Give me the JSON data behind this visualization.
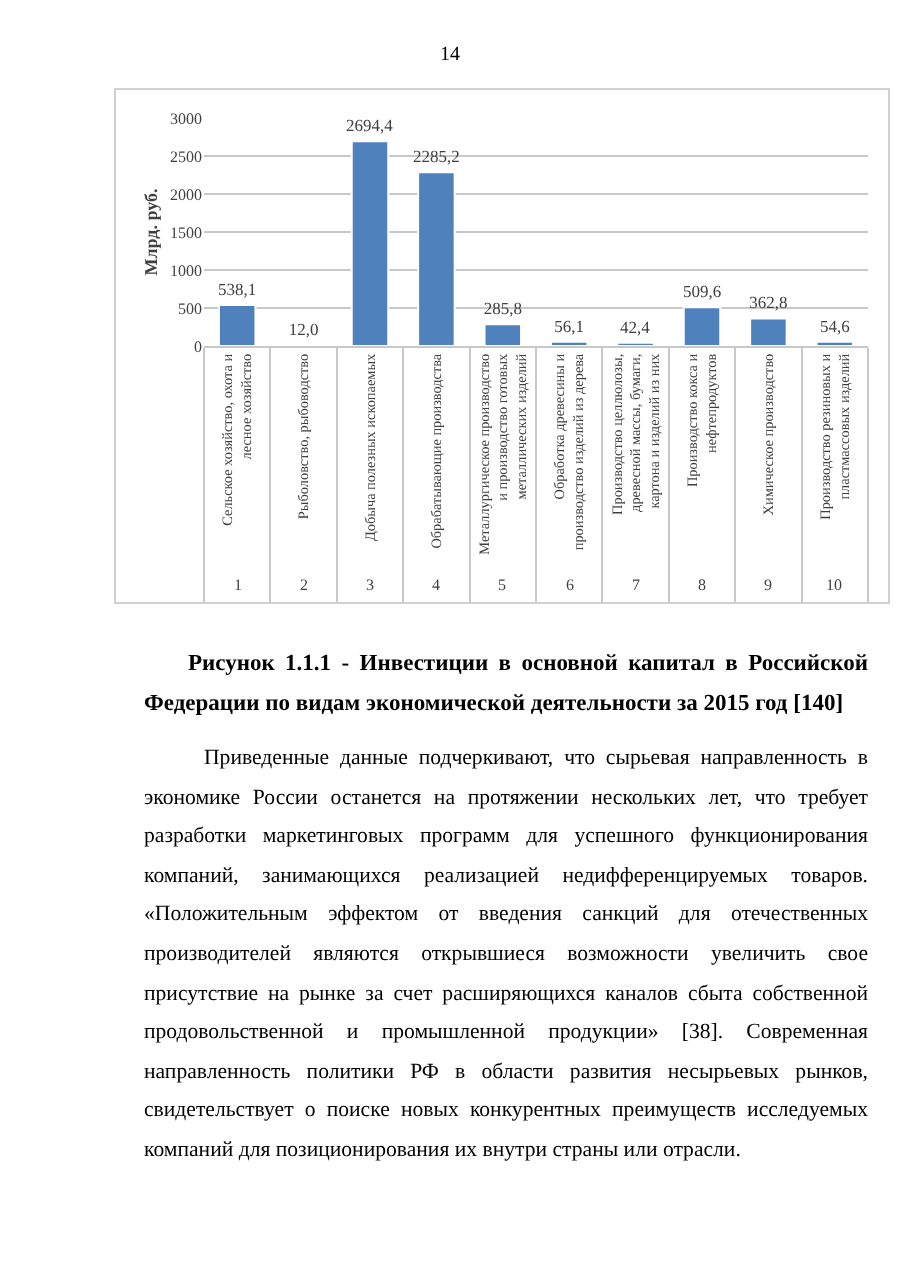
{
  "chart_data": {
    "type": "bar",
    "title": "Рисунок 1.1.1 - Инвестиции в основной капитал в Российской Федерации по видам экономической деятельности за 2015 год [140]",
    "ylabel": "Млрд. руб.",
    "categories": [
      "Сельское хозяйство, охота и лесное хозяйство",
      "Рыболовство, рыбоводство",
      "Добыча полезных ископаемых",
      "Обрабатывающие производства",
      "Металлургическое производство и производство готовых металлических изделий",
      "Обработка древесины и производство изделий из дерева",
      "Производство целлюлозы, древесной массы, бумаги, картона и изделий из них",
      "Производство кокса и нефтепродуктов",
      "Химическое производство",
      "Производство резиновых и пластмассовых изделий"
    ],
    "values": [
      538.1,
      12.0,
      2694.4,
      2285.2,
      285.8,
      56.1,
      42.4,
      509.6,
      362.8,
      54.6
    ],
    "value_labels": [
      "538,1",
      "12,0",
      "2694,4",
      "2285,2",
      "285,8",
      "56,1",
      "42,4",
      "509,6",
      "362,8",
      "54,6"
    ],
    "color": "#4f81bd",
    "ylim": [
      0,
      3000
    ],
    "yticks": [
      0,
      500,
      1000,
      1500,
      2000,
      2500,
      3000
    ],
    "grid": "y",
    "legend": false,
    "annotations": [
      "1",
      "2",
      "3",
      "4",
      "5",
      "6",
      "7",
      "8",
      "9",
      "10",
      "14",
      "Приведенные данные подчеркивают, что сырьевая направленность в экономике России останется на протяжении нескольких лет, что требует разработки маркетинговых программ для успешного функционирования компаний, занимающихся реализацией недифференцируемых товаров. «Положительным эффектом от введения санкций для отечественных производителей являются открывшиеся возможности увеличить свое присутствие на рынке за счет расширяющихся каналов сбыта собственной продовольственной и промышленной продукции» [38]. Современная направленность политики РФ в области развития несырьевых рынков, свидетельствует о поиске новых конкурентных преимуществ исследуемых компаний для позиционирования их внутри страны или отрасли."
    ]
  }
}
